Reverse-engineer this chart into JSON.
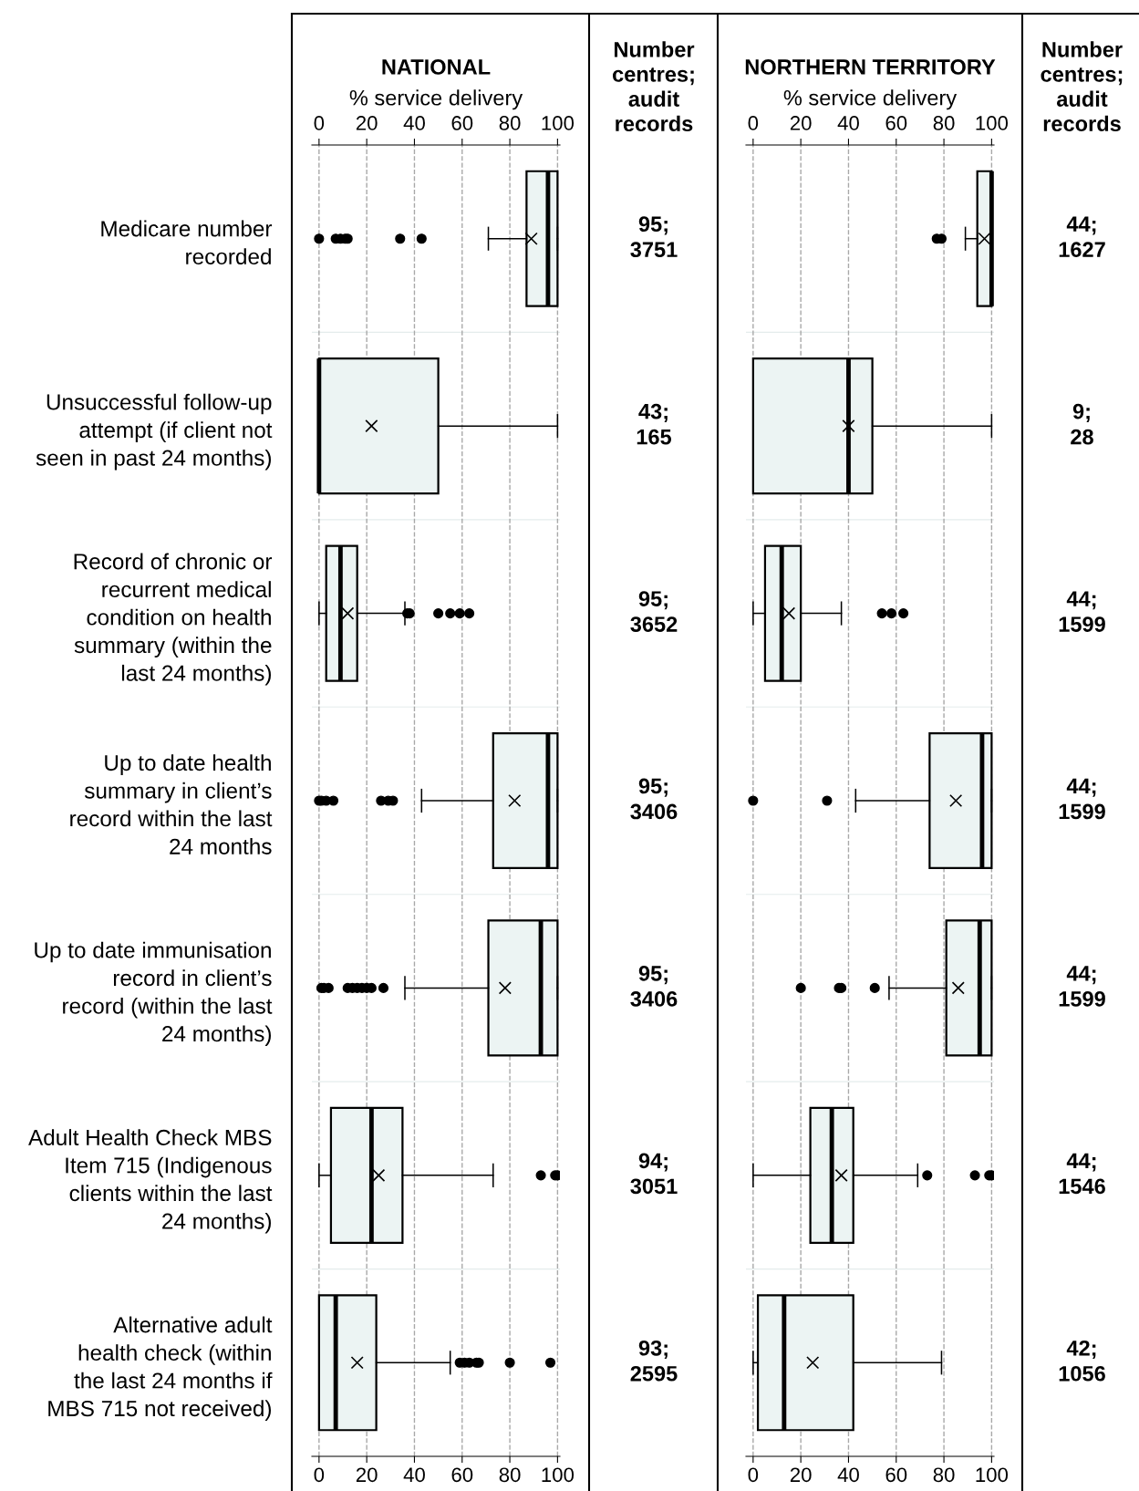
{
  "chart_data": [
    {
      "type": "box",
      "orientation": "horizontal",
      "title": "NATIONAL",
      "x2label": "% service delivery",
      "categories": [
        "Medicare number recorded",
        "Unsuccessful follow-up attempt (if client not seen in past 24 months)",
        "Record of chronic or recurrent medical condition on health summary (within the last 24 months)",
        "Up to date health summary in client’s record within the last 24 months",
        "Up to date immunisation record in client’s record (within the last 24 months)",
        "Adult Health Check MBS Item 715 (Indigenous clients within the last 24 months)",
        "Alternative adult health check (within the last 24 months if MBS 715 not received)"
      ],
      "series": [
        {
          "color": "#ecf4f3",
          "boxes": [
            {
              "low": 71,
              "q1": 87,
              "median": 96,
              "q3": 100,
              "high": 100,
              "mean": 89,
              "outliers": [
                0,
                7,
                9,
                11,
                12,
                34,
                43
              ]
            },
            {
              "low": 0,
              "q1": 0,
              "median": 0,
              "q3": 50,
              "high": 100,
              "mean": 22
            },
            {
              "low": 0,
              "q1": 3,
              "median": 9,
              "q3": 16,
              "high": 36,
              "mean": 12,
              "outliers": [
                37,
                38,
                50,
                55,
                59,
                63
              ]
            },
            {
              "low": 43,
              "q1": 73,
              "median": 96,
              "q3": 100,
              "high": 100,
              "mean": 82,
              "outliers": [
                0,
                1,
                3,
                6,
                26,
                29,
                31
              ]
            },
            {
              "low": 36,
              "q1": 71,
              "median": 93,
              "q3": 100,
              "high": 100,
              "mean": 78,
              "outliers": [
                1,
                2,
                4,
                12,
                14,
                16,
                18,
                20,
                22,
                27
              ]
            },
            {
              "low": 0,
              "q1": 5,
              "median": 22,
              "q3": 35,
              "high": 73,
              "mean": 25,
              "outliers": [
                93,
                99,
                100
              ]
            },
            {
              "low": 0,
              "q1": 0,
              "median": 7,
              "q3": 24,
              "high": 55,
              "mean": 16,
              "outliers": [
                59,
                61,
                63,
                66,
                67,
                80,
                97
              ]
            }
          ]
        }
      ],
      "xlim": [
        -3,
        101
      ],
      "xticks": [
        0,
        20,
        40,
        60,
        80,
        100
      ],
      "x2lim": [
        -3,
        101
      ],
      "x2ticks": [
        0,
        20,
        40,
        60,
        80,
        100
      ],
      "grid": "x"
    },
    {
      "type": "other",
      "title": "Number centres; audit records",
      "annotations": [
        "95; 3751",
        "43; 165",
        "95; 3652",
        "95; 3406",
        "95; 3406",
        "94; 3051",
        "93; 2595"
      ]
    },
    {
      "type": "box",
      "orientation": "horizontal",
      "title": "NORTHERN TERRITORY",
      "x2label": "% service delivery",
      "categories": [
        null,
        null,
        null,
        null,
        null,
        null,
        null
      ],
      "series": [
        {
          "color": "#ecf4f3",
          "boxes": [
            {
              "low": 89,
              "q1": 94,
              "median": 100,
              "q3": 100,
              "high": 100,
              "mean": 97,
              "outliers": [
                77,
                79
              ]
            },
            {
              "low": 0,
              "q1": 0,
              "median": 40,
              "q3": 50,
              "high": 100,
              "mean": 40
            },
            {
              "low": 0,
              "q1": 5,
              "median": 12,
              "q3": 20,
              "high": 37,
              "mean": 15,
              "outliers": [
                54,
                58,
                63
              ]
            },
            {
              "low": 43,
              "q1": 74,
              "median": 96,
              "q3": 100,
              "high": 100,
              "mean": 85,
              "outliers": [
                0,
                31
              ]
            },
            {
              "low": 57,
              "q1": 81,
              "median": 95,
              "q3": 100,
              "high": 100,
              "mean": 86,
              "outliers": [
                20,
                36,
                37,
                51
              ]
            },
            {
              "low": 0,
              "q1": 24,
              "median": 33,
              "q3": 42,
              "high": 69,
              "mean": 37,
              "outliers": [
                73,
                93,
                99,
                100
              ]
            },
            {
              "low": 0,
              "q1": 2,
              "median": 13,
              "q3": 42,
              "high": 79,
              "mean": 25
            }
          ]
        }
      ],
      "xlim": [
        -3,
        101
      ],
      "xticks": [
        0,
        20,
        40,
        60,
        80,
        100
      ],
      "x2lim": [
        -3,
        101
      ],
      "x2ticks": [
        0,
        20,
        40,
        60,
        80,
        100
      ],
      "grid": "x",
      "tick_labels": "x"
    },
    {
      "type": "other",
      "title": "Number centres; audit records",
      "annotations": [
        "44; 1627",
        "9; 28",
        "44; 1599",
        "44; 1599",
        "44; 1599",
        "44; 1546",
        "42; 1056"
      ]
    }
  ]
}
